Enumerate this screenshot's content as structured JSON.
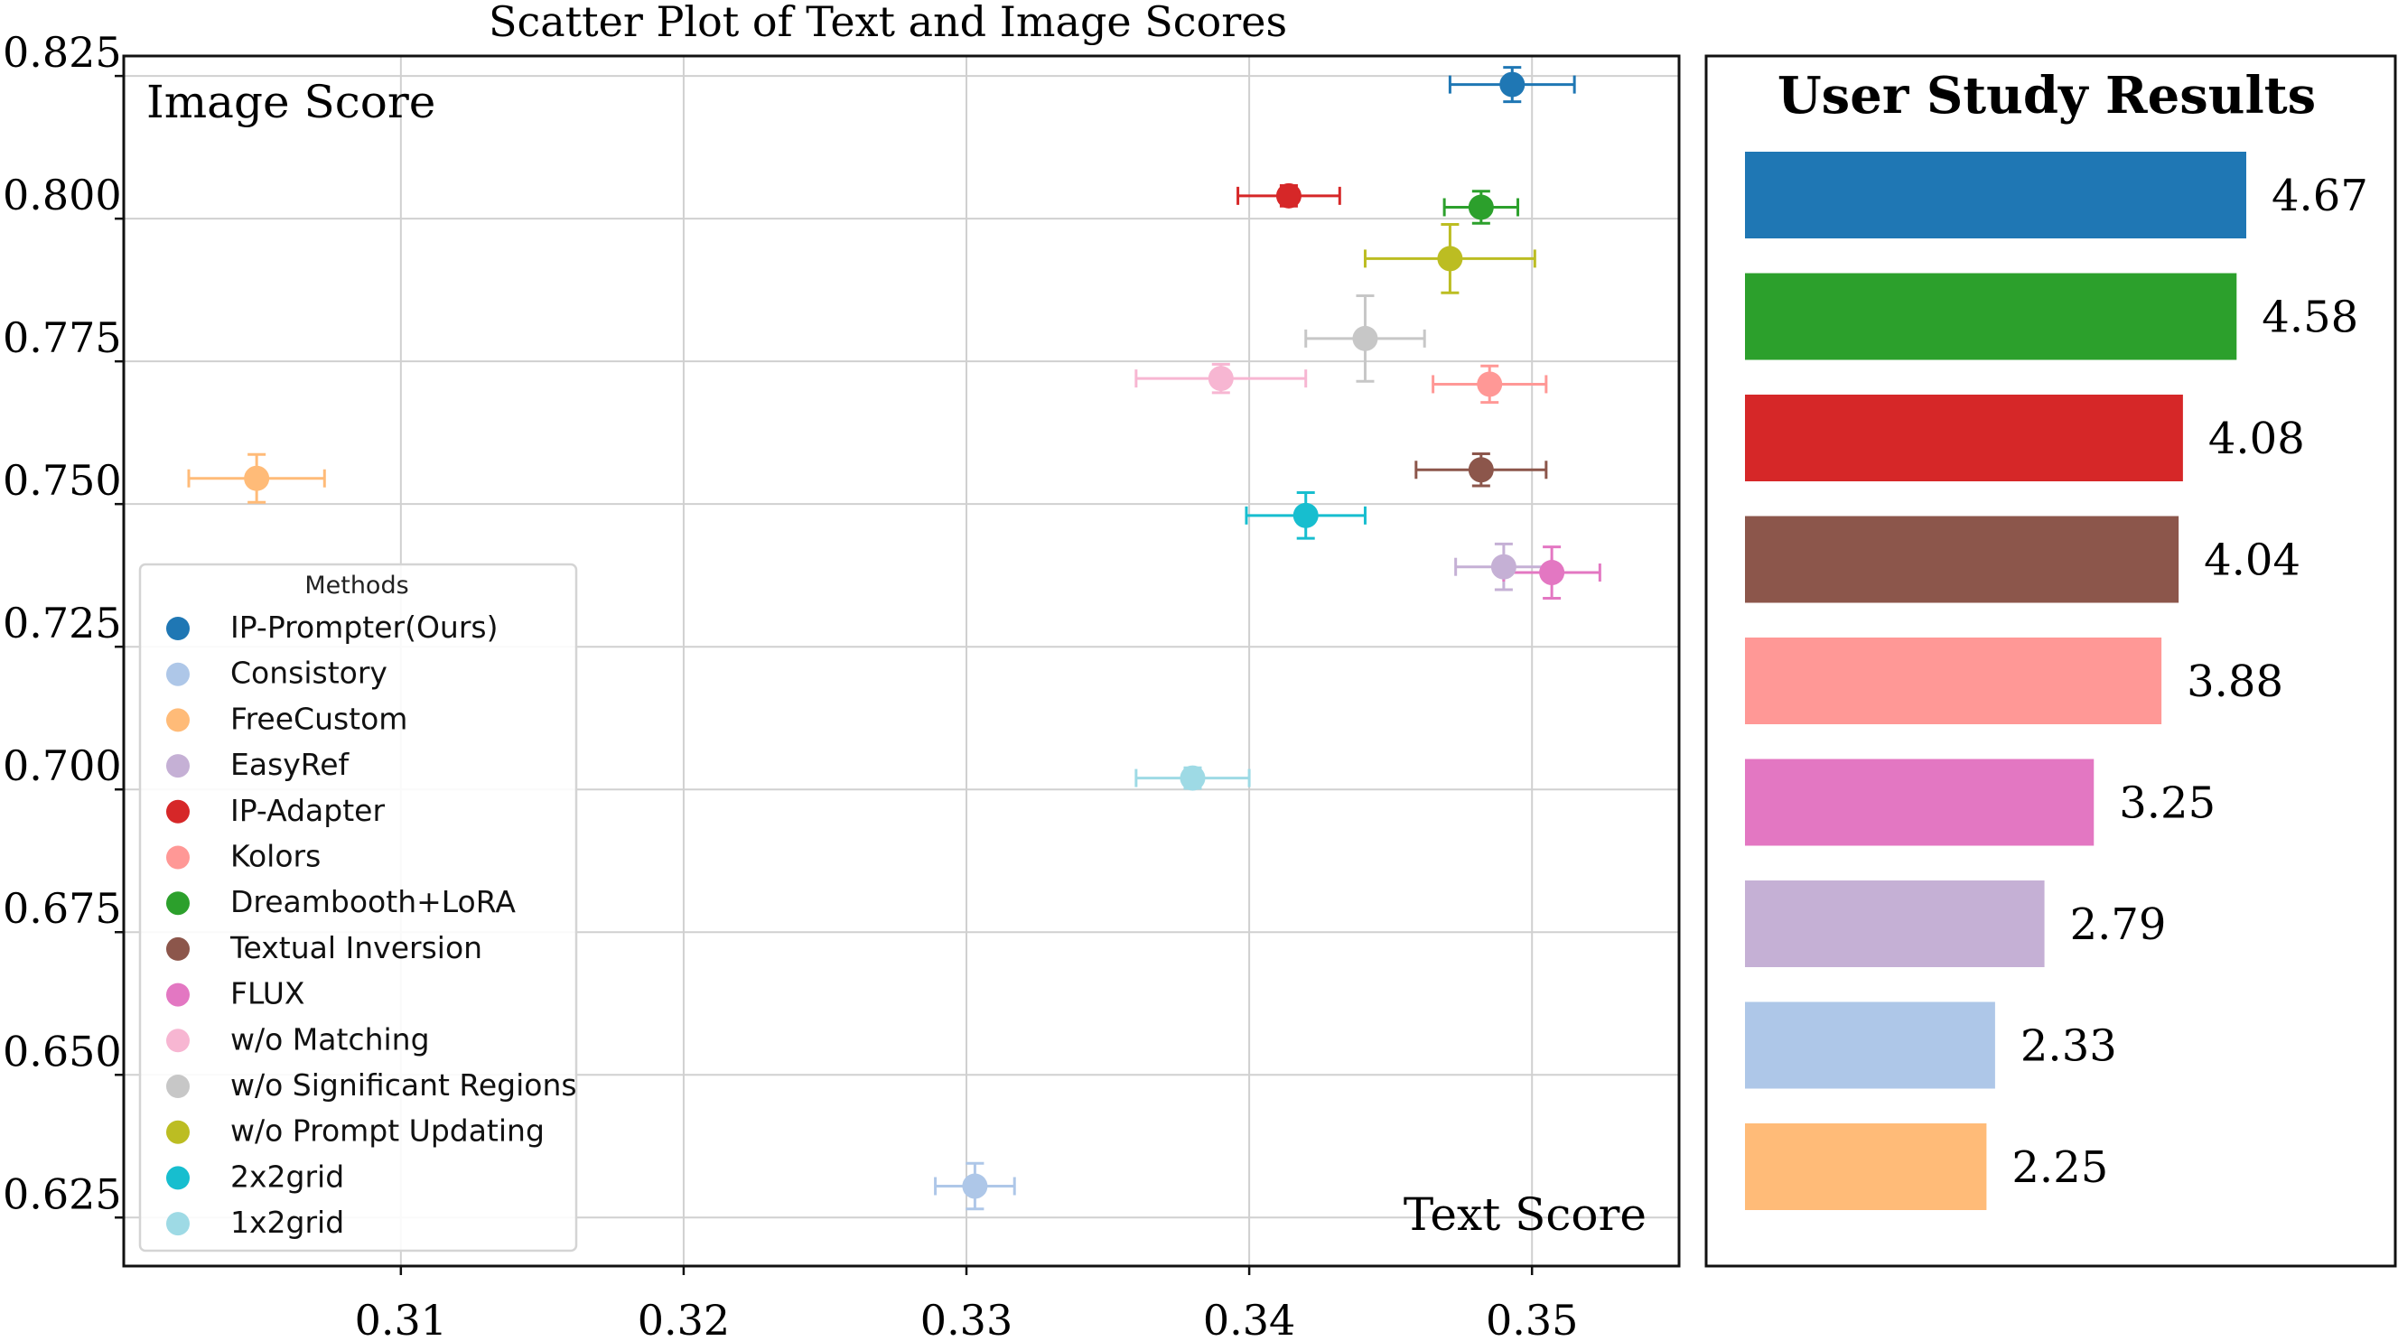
{
  "chart_data": [
    {
      "type": "scatter",
      "title": "Scatter Plot of Text and Image Scores",
      "xlabel": "Text Score",
      "ylabel": "Image Score",
      "xlim": [
        0.3002,
        0.3552
      ],
      "ylim": [
        0.6165,
        0.8285
      ],
      "x_ticks": [
        "0.31",
        "0.32",
        "0.33",
        "0.34",
        "0.35"
      ],
      "y_ticks": [
        "0.825",
        "0.800",
        "0.775",
        "0.750",
        "0.725",
        "0.700",
        "0.675",
        "0.650",
        "0.625"
      ],
      "grid": true,
      "legend": {
        "title": "Methods",
        "position": "lower-left"
      },
      "series": [
        {
          "name": "IP-Prompter(Ours)",
          "color": "#1f77b4",
          "x": 0.3493,
          "y": 0.8235,
          "x_err": 0.0022,
          "y_err": 0.003
        },
        {
          "name": "Consistory",
          "color": "#aec7e8",
          "x": 0.3303,
          "y": 0.6305,
          "x_err": 0.0014,
          "y_err": 0.004
        },
        {
          "name": "FreeCustom",
          "color": "#ffbb78",
          "x": 0.3049,
          "y": 0.7545,
          "x_err": 0.0024,
          "y_err": 0.0042
        },
        {
          "name": "EasyRef",
          "color": "#c5b0d5",
          "x": 0.349,
          "y": 0.739,
          "x_err": 0.0017,
          "y_err": 0.004
        },
        {
          "name": "IP-Adapter",
          "color": "#d62728",
          "x": 0.3414,
          "y": 0.804,
          "x_err": 0.0018,
          "y_err": 0.0018
        },
        {
          "name": "Kolors",
          "color": "#ff9896",
          "x": 0.3485,
          "y": 0.771,
          "x_err": 0.002,
          "y_err": 0.0032
        },
        {
          "name": "Dreambooth+LoRA",
          "color": "#2ca02c",
          "x": 0.3482,
          "y": 0.802,
          "x_err": 0.0013,
          "y_err": 0.0028
        },
        {
          "name": "Textual Inversion",
          "color": "#8c564b",
          "x": 0.3482,
          "y": 0.756,
          "x_err": 0.0023,
          "y_err": 0.0028
        },
        {
          "name": "FLUX",
          "color": "#e377c2",
          "x": 0.3507,
          "y": 0.738,
          "x_err": 0.0017,
          "y_err": 0.0045
        },
        {
          "name": "w/o Matching",
          "color": "#f7b6d2",
          "x": 0.339,
          "y": 0.772,
          "x_err": 0.003,
          "y_err": 0.0025
        },
        {
          "name": "w/o Significant Regions",
          "color": "#c7c7c7",
          "x": 0.3441,
          "y": 0.779,
          "x_err": 0.0021,
          "y_err": 0.0075
        },
        {
          "name": "w/o Prompt Updating",
          "color": "#bcbd22",
          "x": 0.3471,
          "y": 0.793,
          "x_err": 0.003,
          "y_err": 0.006
        },
        {
          "name": "2x2grid",
          "color": "#17becf",
          "x": 0.342,
          "y": 0.748,
          "x_err": 0.0021,
          "y_err": 0.004
        },
        {
          "name": "1x2grid",
          "color": "#9edae5",
          "x": 0.338,
          "y": 0.702,
          "x_err": 0.002,
          "y_err": 0.0018
        }
      ]
    },
    {
      "type": "bar",
      "orientation": "horizontal",
      "title": "User Study Results",
      "xlim": [
        0,
        6.0
      ],
      "categories": [
        "IP-Prompter(Ours)",
        "Dreambooth+LoRA",
        "IP-Adapter",
        "Textual Inversion",
        "Kolors",
        "FLUX",
        "EasyRef",
        "Consistory",
        "FreeCustom"
      ],
      "values": [
        4.67,
        4.58,
        4.08,
        4.04,
        3.88,
        3.25,
        2.79,
        2.33,
        2.25
      ],
      "value_labels": [
        "4.67",
        "4.58",
        "4.08",
        "4.04",
        "3.88",
        "3.25",
        "2.79",
        "2.33",
        "2.25"
      ],
      "colors": [
        "#1f77b4",
        "#2ca02c",
        "#d62728",
        "#8c564b",
        "#ff9896",
        "#e377c2",
        "#c5b0d5",
        "#aec7e8",
        "#ffbb78"
      ]
    }
  ]
}
